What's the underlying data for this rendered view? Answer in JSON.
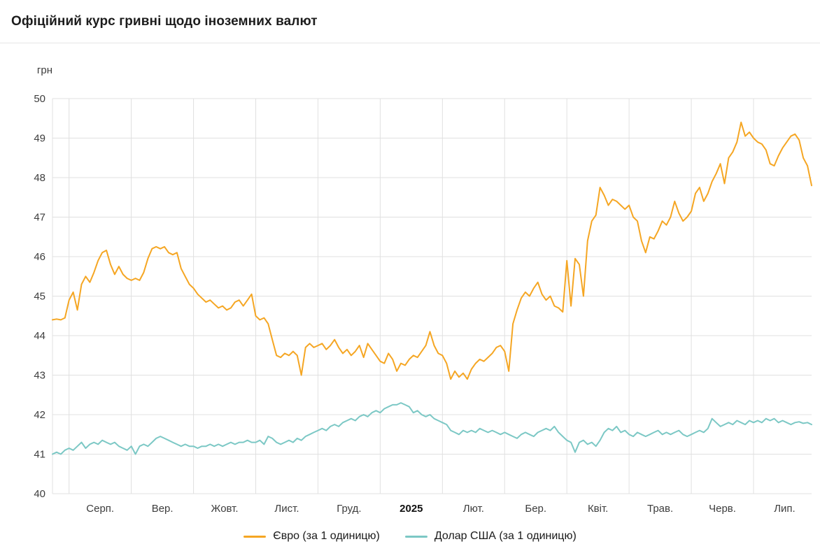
{
  "header": {
    "title": "Офіційний курс гривні щодо іноземних валют"
  },
  "colors": {
    "grid": "#e0e0e0",
    "axis_text": "#3d3d3d",
    "euro_line": "#F5A623",
    "usd_line": "#7CC8C5"
  },
  "chart_data": {
    "type": "line",
    "title": "Офіційний курс гривні щодо іноземних валют",
    "xlabel": "",
    "ylabel": "грн",
    "ylim": [
      40,
      50
    ],
    "ytick_step": 1,
    "grid": true,
    "legend_position": "bottom",
    "lead_points": 4,
    "points_per_month": 15,
    "x_tick_labels": [
      {
        "label": "Серп.",
        "bold": false
      },
      {
        "label": "Вер.",
        "bold": false
      },
      {
        "label": "Жовт.",
        "bold": false
      },
      {
        "label": "Лист.",
        "bold": false
      },
      {
        "label": "Груд.",
        "bold": false
      },
      {
        "label": "2025",
        "bold": true
      },
      {
        "label": "Лют.",
        "bold": false
      },
      {
        "label": "Бер.",
        "bold": false
      },
      {
        "label": "Квіт.",
        "bold": false
      },
      {
        "label": "Трав.",
        "bold": false
      },
      {
        "label": "Черв.",
        "bold": false
      },
      {
        "label": "Лип.",
        "bold": false
      }
    ],
    "series": [
      {
        "name": "Євро (за 1 одиницю)",
        "color": "#F5A623",
        "values": [
          44.4,
          44.42,
          44.4,
          44.45,
          44.9,
          45.1,
          44.65,
          45.3,
          45.5,
          45.35,
          45.6,
          45.9,
          46.1,
          46.16,
          45.8,
          45.55,
          45.75,
          45.55,
          45.45,
          45.4,
          45.45,
          45.4,
          45.6,
          45.95,
          46.2,
          46.25,
          46.2,
          46.25,
          46.1,
          46.05,
          46.1,
          45.7,
          45.5,
          45.3,
          45.2,
          45.05,
          44.95,
          44.85,
          44.9,
          44.8,
          44.7,
          44.75,
          44.65,
          44.7,
          44.85,
          44.9,
          44.75,
          44.9,
          45.05,
          44.5,
          44.4,
          44.45,
          44.3,
          43.9,
          43.5,
          43.45,
          43.55,
          43.5,
          43.6,
          43.5,
          43.0,
          43.7,
          43.8,
          43.7,
          43.75,
          43.8,
          43.65,
          43.75,
          43.9,
          43.7,
          43.55,
          43.65,
          43.5,
          43.6,
          43.75,
          43.45,
          43.8,
          43.65,
          43.5,
          43.35,
          43.3,
          43.55,
          43.4,
          43.1,
          43.3,
          43.25,
          43.4,
          43.5,
          43.45,
          43.6,
          43.75,
          44.1,
          43.75,
          43.55,
          43.5,
          43.3,
          42.9,
          43.1,
          42.95,
          43.05,
          42.9,
          43.15,
          43.3,
          43.4,
          43.35,
          43.45,
          43.55,
          43.7,
          43.75,
          43.6,
          43.1,
          44.3,
          44.65,
          44.95,
          45.1,
          45.0,
          45.2,
          45.35,
          45.05,
          44.9,
          45.0,
          44.75,
          44.7,
          44.6,
          45.9,
          44.75,
          45.95,
          45.8,
          45.0,
          46.4,
          46.9,
          47.05,
          47.75,
          47.55,
          47.3,
          47.45,
          47.4,
          47.3,
          47.2,
          47.3,
          47.0,
          46.9,
          46.4,
          46.1,
          46.5,
          46.45,
          46.65,
          46.9,
          46.8,
          47.0,
          47.4,
          47.1,
          46.9,
          47.0,
          47.15,
          47.6,
          47.75,
          47.4,
          47.6,
          47.9,
          48.1,
          48.35,
          47.85,
          48.5,
          48.65,
          48.9,
          49.4,
          49.05,
          49.15,
          49.0,
          48.9,
          48.85,
          48.7,
          48.35,
          48.3,
          48.55,
          48.75,
          48.9,
          49.05,
          49.1,
          48.95,
          48.5,
          48.3,
          47.8
        ]
      },
      {
        "name": "Долар США (за 1 одиницю)",
        "color": "#7CC8C5",
        "values": [
          41.0,
          41.05,
          41.0,
          41.1,
          41.15,
          41.1,
          41.2,
          41.3,
          41.15,
          41.25,
          41.3,
          41.25,
          41.35,
          41.3,
          41.25,
          41.3,
          41.2,
          41.15,
          41.1,
          41.2,
          41.0,
          41.2,
          41.25,
          41.2,
          41.3,
          41.4,
          41.45,
          41.4,
          41.35,
          41.3,
          41.25,
          41.2,
          41.25,
          41.2,
          41.2,
          41.15,
          41.2,
          41.2,
          41.25,
          41.2,
          41.25,
          41.2,
          41.25,
          41.3,
          41.25,
          41.3,
          41.3,
          41.35,
          41.3,
          41.3,
          41.35,
          41.25,
          41.45,
          41.4,
          41.3,
          41.25,
          41.3,
          41.35,
          41.3,
          41.4,
          41.35,
          41.45,
          41.5,
          41.55,
          41.6,
          41.65,
          41.6,
          41.7,
          41.75,
          41.7,
          41.8,
          41.85,
          41.9,
          41.85,
          41.95,
          42.0,
          41.95,
          42.05,
          42.1,
          42.05,
          42.15,
          42.2,
          42.25,
          42.25,
          42.3,
          42.25,
          42.2,
          42.05,
          42.1,
          42.0,
          41.95,
          42.0,
          41.9,
          41.85,
          41.8,
          41.75,
          41.6,
          41.55,
          41.5,
          41.6,
          41.55,
          41.6,
          41.55,
          41.65,
          41.6,
          41.55,
          41.6,
          41.55,
          41.5,
          41.55,
          41.5,
          41.45,
          41.4,
          41.5,
          41.55,
          41.5,
          41.45,
          41.55,
          41.6,
          41.65,
          41.6,
          41.7,
          41.55,
          41.45,
          41.35,
          41.3,
          41.05,
          41.3,
          41.35,
          41.25,
          41.3,
          41.2,
          41.35,
          41.55,
          41.65,
          41.6,
          41.7,
          41.55,
          41.6,
          41.5,
          41.45,
          41.55,
          41.5,
          41.45,
          41.5,
          41.55,
          41.6,
          41.5,
          41.55,
          41.5,
          41.55,
          41.6,
          41.5,
          41.45,
          41.5,
          41.55,
          41.6,
          41.55,
          41.65,
          41.9,
          41.8,
          41.7,
          41.75,
          41.8,
          41.75,
          41.85,
          41.8,
          41.75,
          41.85,
          41.8,
          41.85,
          41.8,
          41.9,
          41.85,
          41.9,
          41.8,
          41.85,
          41.8,
          41.75,
          41.8,
          41.82,
          41.78,
          41.8,
          41.75
        ]
      }
    ]
  }
}
